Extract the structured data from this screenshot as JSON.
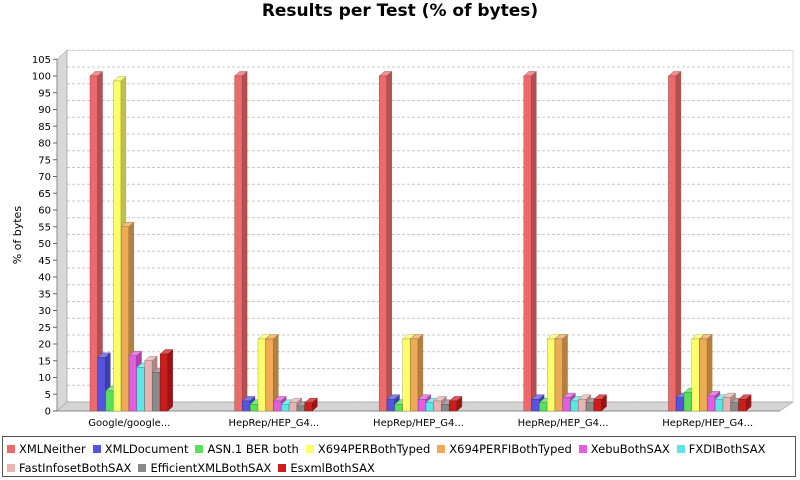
{
  "chart_data": {
    "type": "bar",
    "title": "Results per Test (% of bytes)",
    "xlabel": "",
    "ylabel": "% of bytes",
    "ylim": [
      0,
      105
    ],
    "yticks": [
      0,
      5,
      10,
      15,
      20,
      25,
      30,
      35,
      40,
      45,
      50,
      55,
      60,
      65,
      70,
      75,
      80,
      85,
      90,
      95,
      100,
      105
    ],
    "grid": true,
    "legend_position": "bottom",
    "categories": [
      "Google/google...",
      "HepRep/HEP_G4...",
      "HepRep/HEP_G4...",
      "HepRep/HEP_G4...",
      "HepRep/HEP_G4..."
    ],
    "series": [
      {
        "name": "XMLNeither",
        "color": "#ee6a6a",
        "values": [
          100,
          100,
          100,
          100,
          100
        ]
      },
      {
        "name": "XMLDocument",
        "color": "#5454e0",
        "values": [
          16,
          3,
          3.5,
          3.5,
          4
        ]
      },
      {
        "name": "ASN.1 BER both",
        "color": "#5ae05a",
        "values": [
          6,
          2,
          2,
          2.5,
          5.5
        ]
      },
      {
        "name": "X694PERBothTyped",
        "color": "#fefe6a",
        "values": [
          98.5,
          21.5,
          21.5,
          21.5,
          21.5
        ]
      },
      {
        "name": "X694PERFIBothTyped",
        "color": "#eeaa55",
        "values": [
          55,
          21.5,
          21.5,
          21.5,
          21.5
        ]
      },
      {
        "name": "XebuBothSAX",
        "color": "#e05ee0",
        "values": [
          16.5,
          3,
          3.5,
          4,
          4.5
        ]
      },
      {
        "name": "FXDIBothSAX",
        "color": "#5ee6e6",
        "values": [
          13,
          2,
          2.5,
          3,
          3.5
        ]
      },
      {
        "name": "FastInfosetBothSAX",
        "color": "#eab2b2",
        "values": [
          15,
          2.5,
          3,
          3.5,
          4
        ]
      },
      {
        "name": "EfficientXMLBothSAX",
        "color": "#8a8a8a",
        "values": [
          11.5,
          1.5,
          2,
          2.5,
          2.5
        ]
      },
      {
        "name": "EsxmlBothSAX",
        "color": "#cc1c1c",
        "values": [
          17,
          2.5,
          3,
          3.5,
          3.5
        ]
      }
    ]
  }
}
